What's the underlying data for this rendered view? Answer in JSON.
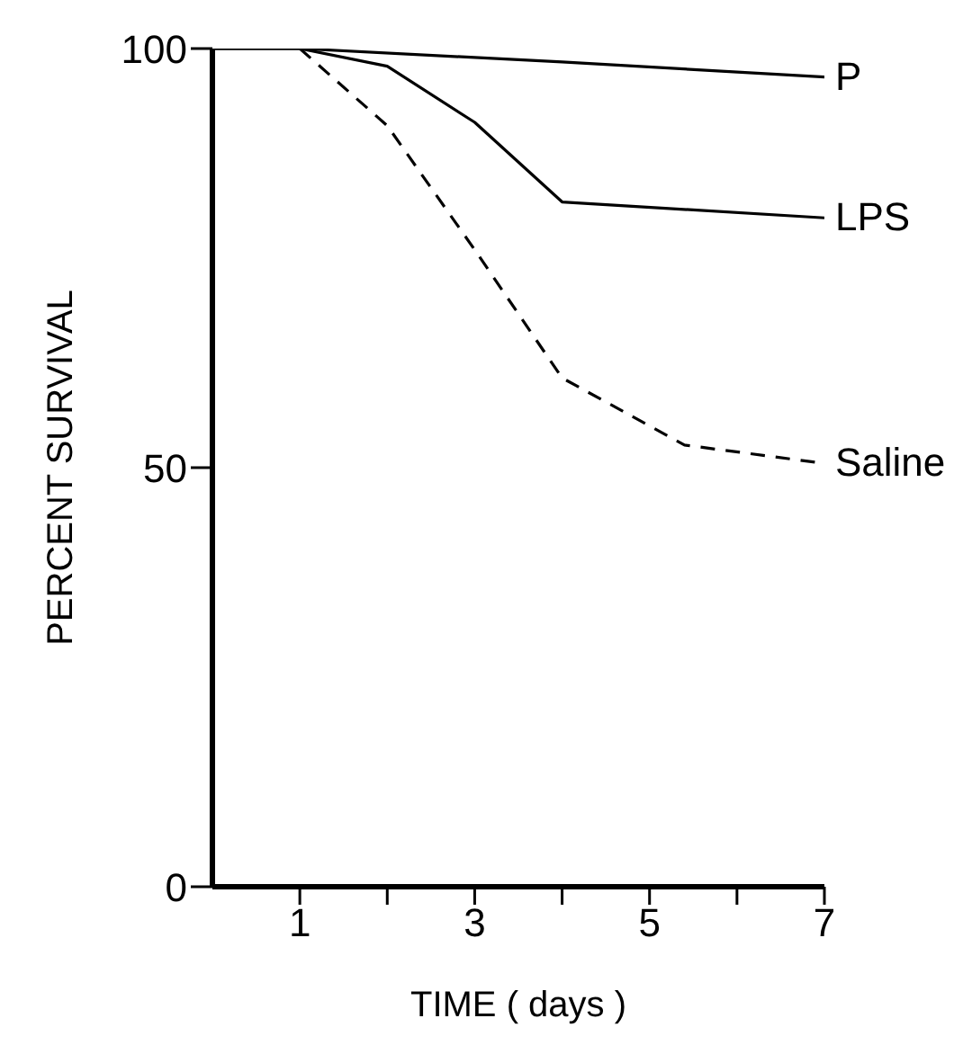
{
  "chart_data": {
    "type": "line",
    "xlabel": "TIME   (  days  )",
    "ylabel": "PERCENT   SURVIVAL",
    "xlim": [
      0,
      7
    ],
    "ylim": [
      0,
      100
    ],
    "xticks": [
      1,
      {
        "value": 2,
        "label": null
      },
      3,
      {
        "value": 4,
        "label": null
      },
      5,
      {
        "value": 6,
        "label": null
      },
      7
    ],
    "yticks": [
      0,
      50,
      100
    ],
    "grid": false,
    "legend": false,
    "marker": "none",
    "series": [
      {
        "name": "P",
        "color": "#000000",
        "line_style": "solid",
        "x": [
          0,
          1,
          4,
          7
        ],
        "values": [
          100,
          100,
          98.4,
          96.6
        ]
      },
      {
        "name": "LPS",
        "color": "#000000",
        "line_style": "solid",
        "x": [
          0,
          1,
          2,
          3,
          4,
          7
        ],
        "values": [
          100,
          100,
          97.9,
          91.2,
          81.7,
          79.8
        ]
      },
      {
        "name": "Saline",
        "color": "#000000",
        "line_style": "dashed",
        "x": [
          1,
          2,
          3,
          4,
          5.4,
          7
        ],
        "values": [
          100,
          90.8,
          76,
          60.7,
          52.7,
          50.5
        ]
      }
    ]
  }
}
